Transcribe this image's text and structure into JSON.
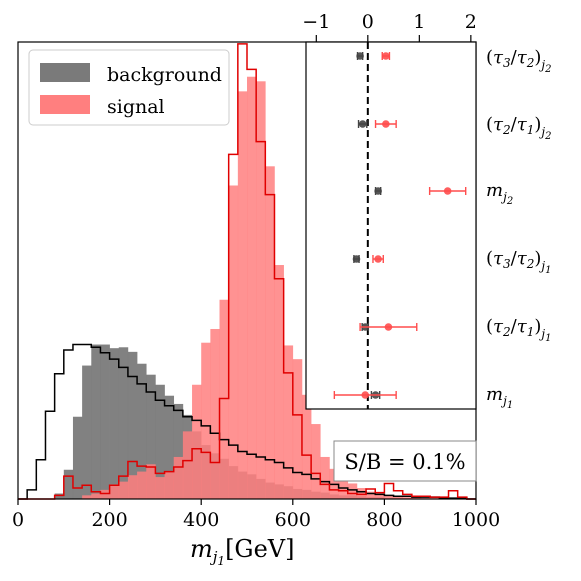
{
  "chart_data": [
    {
      "type": "bar",
      "bin_edges": [
        0,
        20,
        40,
        60,
        80,
        100,
        120,
        140,
        160,
        180,
        200,
        220,
        240,
        260,
        280,
        300,
        320,
        340,
        360,
        380,
        400,
        420,
        440,
        460,
        480,
        500,
        520,
        540,
        560,
        580,
        600,
        620,
        640,
        660,
        680,
        700,
        720,
        740,
        760,
        780,
        800,
        820,
        840,
        860,
        880,
        900,
        920,
        940,
        960,
        980,
        1000
      ],
      "series": [
        {
          "name": "background",
          "style": "filled",
          "color": "#7a7a7a",
          "values": [
            0,
            0,
            0,
            0,
            0.6,
            3.2,
            9.0,
            14.6,
            16.9,
            16.9,
            16.5,
            16.6,
            16.1,
            14.8,
            13.6,
            12.5,
            11.3,
            10.4,
            9.2,
            7.4,
            5.9,
            5.0,
            4.4,
            3.6,
            3.0,
            2.7,
            2.2,
            1.8,
            1.6,
            1.4,
            1.1,
            1.0,
            0.8,
            0.7,
            0.5,
            0.4,
            0.4,
            0.3,
            0.2,
            0.2,
            0.1,
            0.1,
            0.1,
            0.05,
            0.05,
            0.05,
            0,
            0,
            0,
            0
          ]
        },
        {
          "name": "signal",
          "style": "filled",
          "color": "#ff7f7f",
          "values": [
            0,
            0,
            0,
            0,
            0,
            0,
            0,
            0.4,
            0.6,
            1.0,
            1.6,
            1.9,
            2.6,
            3.0,
            3.8,
            2.4,
            3.0,
            4.6,
            7.4,
            12.5,
            17.1,
            18.6,
            21.8,
            34.3,
            44.6,
            46.2,
            45.7,
            36.4,
            25.6,
            16.8,
            15.3,
            11.4,
            8.2,
            4.6,
            3.3,
            2.3,
            1.7,
            1.2,
            0.8,
            0.6,
            0.4,
            0.3,
            0.2,
            0.2,
            0.1,
            0.1,
            0,
            0,
            0,
            0
          ]
        },
        {
          "name": "background",
          "style": "step",
          "color": "#000000",
          "values": [
            0,
            1.0,
            4.3,
            9.6,
            13.7,
            16.3,
            16.9,
            16.9,
            16.6,
            16.0,
            15.3,
            14.4,
            13.4,
            12.6,
            11.7,
            10.8,
            10.2,
            9.7,
            9.0,
            8.6,
            8.0,
            7.2,
            6.5,
            5.9,
            5.2,
            4.9,
            4.6,
            4.3,
            4.0,
            3.4,
            2.9,
            2.7,
            2.2,
            1.9,
            1.6,
            1.2,
            1.0,
            0.8,
            0.6,
            0.5,
            0.4,
            0.3,
            0.3,
            0.2,
            0.2,
            0.2,
            0.1,
            0.1,
            0.1,
            0
          ]
        },
        {
          "name": "signal",
          "style": "step",
          "color": "#e00000",
          "values": [
            0,
            0,
            0,
            0,
            0.4,
            2.5,
            1.2,
            1.5,
            0.8,
            0.6,
            1.5,
            2.5,
            4.1,
            3.6,
            3.5,
            2.8,
            3.0,
            3.5,
            4.2,
            5.5,
            5.1,
            4.0,
            11.0,
            37.7,
            49.8,
            47.0,
            39.1,
            33.3,
            24.1,
            13.8,
            9.2,
            4.8,
            2.8,
            1.6,
            1.0,
            0.9,
            0.6,
            0.5,
            1.1,
            0.7,
            1.7,
            0.9,
            0.5,
            0.3,
            0.3,
            0.2,
            0.2,
            0.9,
            0.2,
            0
          ]
        }
      ],
      "xlabel": "m_{j1}[GeV]",
      "xticks": [
        0,
        200,
        400,
        600,
        800,
        1000
      ],
      "xlim": [
        0,
        1000
      ],
      "ylim": [
        0,
        50
      ],
      "legend": {
        "placement": "top-left",
        "entries": [
          "background",
          "signal"
        ]
      },
      "annotation": "S/B = 0.1%"
    },
    {
      "type": "scatter",
      "inset": true,
      "xticks": [
        -1,
        0,
        1,
        2
      ],
      "xlim": [
        -1.2,
        2.1
      ],
      "reference_line_x": 0,
      "categories": [
        "(τ3/τ2)j2",
        "(τ2/τ1)j2",
        "mj2",
        "(τ3/τ2)j1",
        "(τ2/τ1)j1",
        "mj1"
      ],
      "series": [
        {
          "name": "background",
          "color": "#444444",
          "values": [
            -0.15,
            -0.1,
            0.2,
            -0.22,
            -0.05,
            0.15
          ],
          "err_low": [
            0.05,
            0.08,
            0.05,
            0.05,
            0.06,
            0.08
          ],
          "err_high": [
            0.05,
            0.08,
            0.05,
            0.05,
            0.06,
            0.08
          ]
        },
        {
          "name": "signal",
          "color": "#ff4d4d",
          "values": [
            0.35,
            0.35,
            1.55,
            0.2,
            0.4,
            -0.05
          ],
          "err_low": [
            0.07,
            0.2,
            0.35,
            0.1,
            0.55,
            0.6
          ],
          "err_high": [
            0.07,
            0.2,
            0.35,
            0.1,
            0.55,
            0.6
          ]
        }
      ]
    }
  ]
}
